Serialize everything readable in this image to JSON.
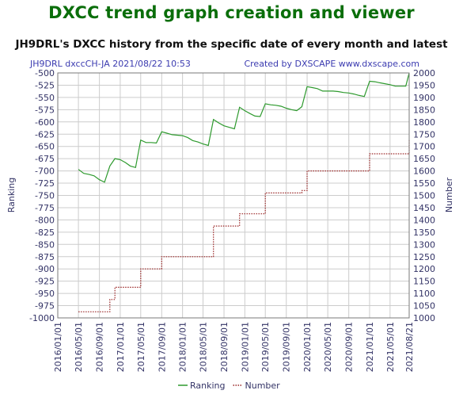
{
  "page": {
    "title": "DXCC trend graph creation and viewer",
    "subtitle": "JH9DRL's DXCC history from the specific date of every month and latest"
  },
  "chart_data": {
    "type": "line",
    "header_left": "JH9DRL dxccCH-JA 2021/08/22 10:53",
    "header_right": "Created by DXSCAPE www.dxscape.com",
    "ylabel_left": "Ranking",
    "ylabel_right": "Number",
    "ylim_left": [
      -1000,
      -500
    ],
    "ylim_right": [
      1000,
      2000
    ],
    "left_ticks": [
      "-500",
      "-525",
      "-550",
      "-575",
      "-600",
      "-625",
      "-650",
      "-675",
      "-700",
      "-725",
      "-750",
      "-775",
      "-800",
      "-825",
      "-850",
      "-875",
      "-900",
      "-925",
      "-950",
      "-975",
      "-1000"
    ],
    "right_ticks": [
      "2000",
      "1950",
      "1900",
      "1850",
      "1800",
      "1750",
      "1700",
      "1650",
      "1600",
      "1550",
      "1500",
      "1450",
      "1400",
      "1350",
      "1300",
      "1250",
      "1200",
      "1150",
      "1100",
      "1050",
      "1000"
    ],
    "x_ticks": [
      "2016/01/01",
      "2016/05/01",
      "2016/09/01",
      "2017/01/01",
      "2017/05/01",
      "2017/09/01",
      "2018/01/01",
      "2018/05/01",
      "2018/09/01",
      "2019/01/01",
      "2019/05/01",
      "2019/09/01",
      "2020/01/01",
      "2020/05/01",
      "2020/09/01",
      "2021/01/01",
      "2021/05/01",
      "2021/08/21"
    ],
    "grid": true,
    "legend_position": "bottom",
    "series": [
      {
        "name": "Ranking",
        "color": "#2e9a2e",
        "style": "solid",
        "axis": "left",
        "x": [
          "2016/05/01",
          "2016/06/01",
          "2016/07/01",
          "2016/08/01",
          "2016/09/01",
          "2016/10/01",
          "2016/11/01",
          "2016/12/01",
          "2017/01/01",
          "2017/02/01",
          "2017/03/01",
          "2017/04/01",
          "2017/05/01",
          "2017/06/01",
          "2017/07/01",
          "2017/08/01",
          "2017/09/01",
          "2017/10/01",
          "2017/11/01",
          "2017/12/01",
          "2018/01/01",
          "2018/02/01",
          "2018/03/01",
          "2018/04/01",
          "2018/05/01",
          "2018/06/01",
          "2018/07/01",
          "2018/08/01",
          "2018/09/01",
          "2018/10/01",
          "2018/11/01",
          "2018/12/01",
          "2019/01/01",
          "2019/02/01",
          "2019/03/01",
          "2019/04/01",
          "2019/05/01",
          "2019/06/01",
          "2019/07/01",
          "2019/08/01",
          "2019/09/01",
          "2019/10/01",
          "2019/11/01",
          "2019/12/01",
          "2020/01/01",
          "2020/02/01",
          "2020/03/01",
          "2020/04/01",
          "2020/05/01",
          "2020/06/01",
          "2020/07/01",
          "2020/08/01",
          "2020/09/01",
          "2020/10/01",
          "2020/11/01",
          "2020/12/01",
          "2021/01/01",
          "2021/02/01",
          "2021/03/01",
          "2021/04/01",
          "2021/05/01",
          "2021/06/01",
          "2021/07/01",
          "2021/08/01",
          "2021/08/21"
        ],
        "values": [
          -697,
          -705,
          -707,
          -710,
          -718,
          -723,
          -690,
          -675,
          -677,
          -683,
          -690,
          -693,
          -637,
          -642,
          -642,
          -643,
          -620,
          -623,
          -626,
          -627,
          -628,
          -632,
          -638,
          -641,
          -645,
          -648,
          -595,
          -602,
          -608,
          -611,
          -614,
          -570,
          -577,
          -583,
          -588,
          -589,
          -563,
          -565,
          -566,
          -568,
          -572,
          -575,
          -577,
          -569,
          -528,
          -530,
          -532,
          -537,
          -537,
          -537,
          -538,
          -540,
          -541,
          -543,
          -546,
          -548,
          -517,
          -518,
          -520,
          -522,
          -524,
          -527,
          -527,
          -527,
          -500
        ]
      },
      {
        "name": "Number",
        "color": "#9a2626",
        "style": "dotted",
        "axis": "right",
        "x": [
          "2016/05/01",
          "2016/06/01",
          "2016/07/01",
          "2016/08/01",
          "2016/09/01",
          "2016/10/01",
          "2016/11/01",
          "2016/12/01",
          "2017/01/01",
          "2017/02/01",
          "2017/03/01",
          "2017/04/01",
          "2017/05/01",
          "2017/06/01",
          "2017/07/01",
          "2017/08/01",
          "2017/09/01",
          "2017/10/01",
          "2017/11/01",
          "2017/12/01",
          "2018/01/01",
          "2018/02/01",
          "2018/03/01",
          "2018/04/01",
          "2018/05/01",
          "2018/06/01",
          "2018/07/01",
          "2018/08/01",
          "2018/09/01",
          "2018/10/01",
          "2018/11/01",
          "2018/12/01",
          "2019/01/01",
          "2019/02/01",
          "2019/03/01",
          "2019/04/01",
          "2019/05/01",
          "2019/06/01",
          "2019/07/01",
          "2019/08/01",
          "2019/09/01",
          "2019/10/01",
          "2019/11/01",
          "2019/12/01",
          "2020/01/01",
          "2020/02/01",
          "2020/03/01",
          "2020/04/01",
          "2020/05/01",
          "2020/06/01",
          "2020/07/01",
          "2020/08/01",
          "2020/09/01",
          "2020/10/01",
          "2020/11/01",
          "2020/12/01",
          "2021/01/01",
          "2021/02/01",
          "2021/03/01",
          "2021/04/01",
          "2021/05/01",
          "2021/06/01",
          "2021/07/01",
          "2021/08/01",
          "2021/08/21"
        ],
        "values": [
          1025,
          1025,
          1025,
          1025,
          1025,
          1025,
          1075,
          1125,
          1125,
          1125,
          1125,
          1125,
          1200,
          1200,
          1200,
          1200,
          1250,
          1250,
          1250,
          1250,
          1250,
          1250,
          1250,
          1250,
          1250,
          1250,
          1375,
          1375,
          1375,
          1375,
          1375,
          1425,
          1425,
          1425,
          1425,
          1425,
          1510,
          1510,
          1510,
          1510,
          1510,
          1510,
          1510,
          1520,
          1600,
          1600,
          1600,
          1600,
          1600,
          1600,
          1600,
          1600,
          1600,
          1600,
          1600,
          1600,
          1670,
          1670,
          1670,
          1670,
          1670,
          1670,
          1670,
          1670,
          1730
        ]
      }
    ]
  }
}
